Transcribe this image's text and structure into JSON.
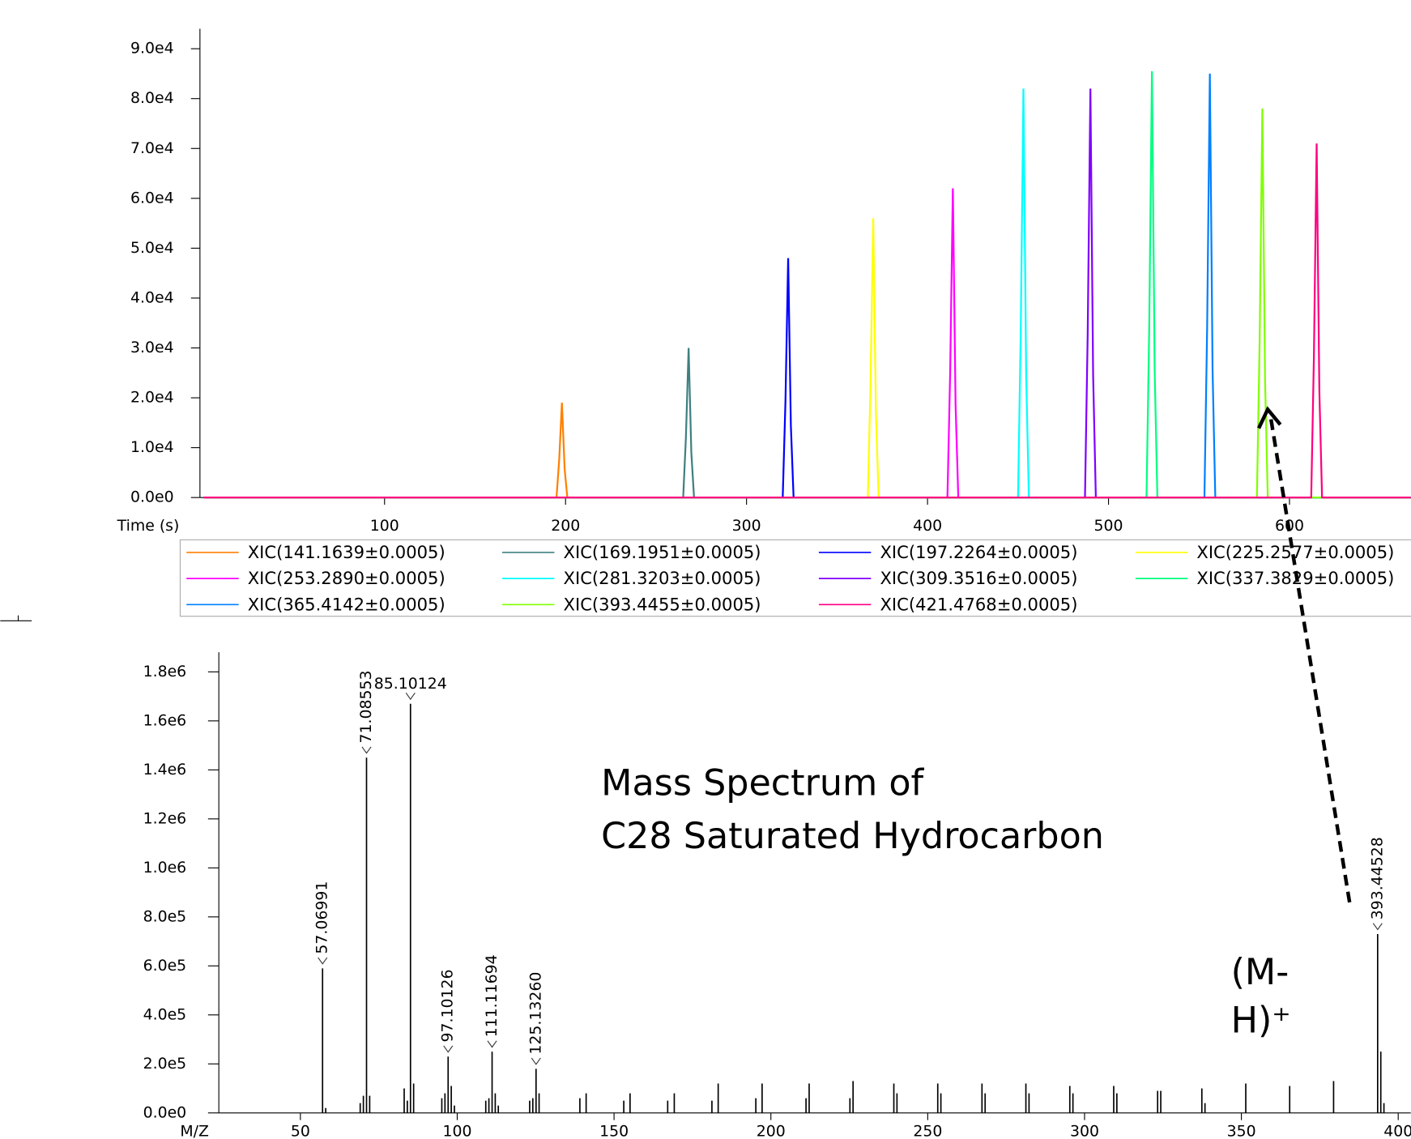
{
  "chart_data": [
    {
      "type": "line",
      "xlabel": "Time (s)",
      "xlim": [
        -2,
        667
      ],
      "xticks": [
        100,
        200,
        300,
        400,
        500,
        600
      ],
      "ylim": [
        0,
        94000
      ],
      "yticks": [
        {
          "value": 0,
          "label": "0.0e0"
        },
        {
          "value": 10000,
          "label": "1.0e4"
        },
        {
          "value": 20000,
          "label": "2.0e4"
        },
        {
          "value": 30000,
          "label": "3.0e4"
        },
        {
          "value": 40000,
          "label": "4.0e4"
        },
        {
          "value": 50000,
          "label": "5.0e4"
        },
        {
          "value": 60000,
          "label": "6.0e4"
        },
        {
          "value": 70000,
          "label": "7.0e4"
        },
        {
          "value": 80000,
          "label": "8.0e4"
        },
        {
          "value": 90000,
          "label": "9.0e4"
        }
      ],
      "series": [
        {
          "name": "XIC(141.1639±0.0005)",
          "color": "#ff8000",
          "x": [
            0,
            195,
            196.5,
            198,
            199.5,
            201,
            667
          ],
          "values": [
            0,
            0,
            7600,
            19000,
            5700,
            0,
            0
          ]
        },
        {
          "name": "XIC(169.1951±0.0005)",
          "color": "#408080",
          "x": [
            0,
            265,
            266.5,
            268,
            269.5,
            271,
            667
          ],
          "values": [
            0,
            0,
            12000,
            30000,
            9000,
            0,
            0
          ]
        },
        {
          "name": "XIC(197.2264±0.0005)",
          "color": "#0000ff",
          "x": [
            0,
            320,
            321.5,
            323,
            324.5,
            326,
            667
          ],
          "values": [
            0,
            0,
            19200,
            48000,
            14400,
            0,
            0
          ]
        },
        {
          "name": "XIC(225.2577±0.0005)",
          "color": "#ffff00",
          "x": [
            0,
            367,
            368.5,
            370,
            371.5,
            373,
            667
          ],
          "values": [
            0,
            0,
            22400,
            56000,
            16800,
            0,
            0
          ]
        },
        {
          "name": "XIC(253.2890±0.0005)",
          "color": "#ff00ff",
          "x": [
            0,
            411,
            412.5,
            414,
            415.5,
            417,
            667
          ],
          "values": [
            0,
            0,
            24800,
            62000,
            18600,
            0,
            0
          ]
        },
        {
          "name": "XIC(281.3203±0.0005)",
          "color": "#00ffff",
          "x": [
            0,
            450,
            451.5,
            453,
            454.5,
            456,
            667
          ],
          "values": [
            0,
            0,
            32800,
            82000,
            24600,
            0,
            0
          ]
        },
        {
          "name": "XIC(309.3516±0.0005)",
          "color": "#8000ff",
          "x": [
            0,
            487,
            488.5,
            490,
            491.5,
            493,
            667
          ],
          "values": [
            0,
            0,
            32800,
            82000,
            24600,
            0,
            0
          ]
        },
        {
          "name": "XIC(337.3829±0.0005)",
          "color": "#00ff80",
          "x": [
            0,
            521,
            522.5,
            524,
            525.5,
            527,
            667
          ],
          "values": [
            0,
            0,
            34200,
            85500,
            25650,
            0,
            0
          ]
        },
        {
          "name": "XIC(365.4142±0.0005)",
          "color": "#0080ff",
          "x": [
            0,
            553,
            554.5,
            556,
            557.5,
            559,
            667
          ],
          "values": [
            0,
            0,
            34000,
            85000,
            25500,
            0,
            0
          ]
        },
        {
          "name": "XIC(393.4455±0.0005)",
          "color": "#80ff00",
          "x": [
            0,
            582,
            583.5,
            585,
            586.5,
            588,
            667
          ],
          "values": [
            0,
            0,
            31200,
            78000,
            23400,
            0,
            0
          ]
        },
        {
          "name": "XIC(421.4768±0.0005)",
          "color": "#ff0080",
          "x": [
            0,
            612,
            613.5,
            615,
            616.5,
            618,
            667
          ],
          "values": [
            0,
            0,
            28400,
            71000,
            21300,
            0,
            0
          ]
        }
      ]
    },
    {
      "type": "stem",
      "xlabel": "M/Z",
      "xlim": [
        24,
        404
      ],
      "xticks": [
        50,
        100,
        150,
        200,
        250,
        300,
        350,
        400
      ],
      "ylim": [
        0,
        1880000
      ],
      "yticks": [
        {
          "value": 0,
          "label": "0.0e0"
        },
        {
          "value": 200000,
          "label": "2.0e5"
        },
        {
          "value": 400000,
          "label": "4.0e5"
        },
        {
          "value": 600000,
          "label": "6.0e5"
        },
        {
          "value": 800000,
          "label": "8.0e5"
        },
        {
          "value": 1000000,
          "label": "1.0e6"
        },
        {
          "value": 1200000,
          "label": "1.2e6"
        },
        {
          "value": 1400000,
          "label": "1.4e6"
        },
        {
          "value": 1600000,
          "label": "1.6e6"
        },
        {
          "value": 1800000,
          "label": "1.8e6"
        }
      ],
      "color": "#000000",
      "x": [
        57.06991,
        58.07,
        69.07,
        70.08,
        71.08553,
        72.09,
        83.09,
        84.09,
        85.10124,
        86.1,
        95.09,
        96.09,
        97.10126,
        98.1,
        99.1,
        109.1,
        110.1,
        111.11694,
        112.12,
        113.1,
        123.1,
        124.1,
        125.1326,
        126.1,
        139.1,
        141.1,
        153.1,
        155.1,
        167.1,
        169.2,
        181.2,
        183.2,
        195.2,
        197.2,
        211.2,
        212.2,
        225.2,
        226.2,
        239.2,
        240.2,
        253.2,
        254.2,
        267.3,
        268.3,
        281.3,
        282.3,
        295.3,
        296.3,
        309.3,
        310.3,
        323.3,
        324.3,
        337.4,
        338.4,
        351.4,
        365.4,
        379.4,
        393.44528,
        394.45,
        395.45
      ],
      "values": [
        590000,
        20000,
        40000,
        70000,
        1450000,
        70000,
        100000,
        50000,
        1670000,
        120000,
        60000,
        80000,
        230000,
        110000,
        30000,
        50000,
        60000,
        250000,
        80000,
        30000,
        50000,
        60000,
        180000,
        80000,
        60000,
        80000,
        50000,
        80000,
        50000,
        80000,
        50000,
        120000,
        60000,
        120000,
        60000,
        120000,
        60000,
        130000,
        120000,
        80000,
        120000,
        80000,
        120000,
        80000,
        120000,
        80000,
        110000,
        80000,
        110000,
        80000,
        90000,
        90000,
        100000,
        40000,
        120000,
        110000,
        130000,
        730000,
        250000,
        40000
      ],
      "labels": [
        "57.06991",
        null,
        null,
        null,
        "71.08553",
        null,
        null,
        null,
        "85.10124",
        null,
        null,
        null,
        "97.10126",
        null,
        null,
        null,
        null,
        "111.11694",
        null,
        null,
        null,
        null,
        "125.13260",
        null,
        null,
        null,
        null,
        null,
        null,
        null,
        null,
        null,
        null,
        null,
        null,
        null,
        null,
        null,
        null,
        null,
        null,
        null,
        null,
        null,
        null,
        null,
        null,
        null,
        null,
        null,
        null,
        null,
        null,
        null,
        null,
        null,
        null,
        "393.44528",
        null,
        null
      ],
      "annotations": [
        "Mass Spectrum of",
        "C28 Saturated Hydrocarbon",
        "(M-",
        "H)⁺"
      ]
    }
  ]
}
